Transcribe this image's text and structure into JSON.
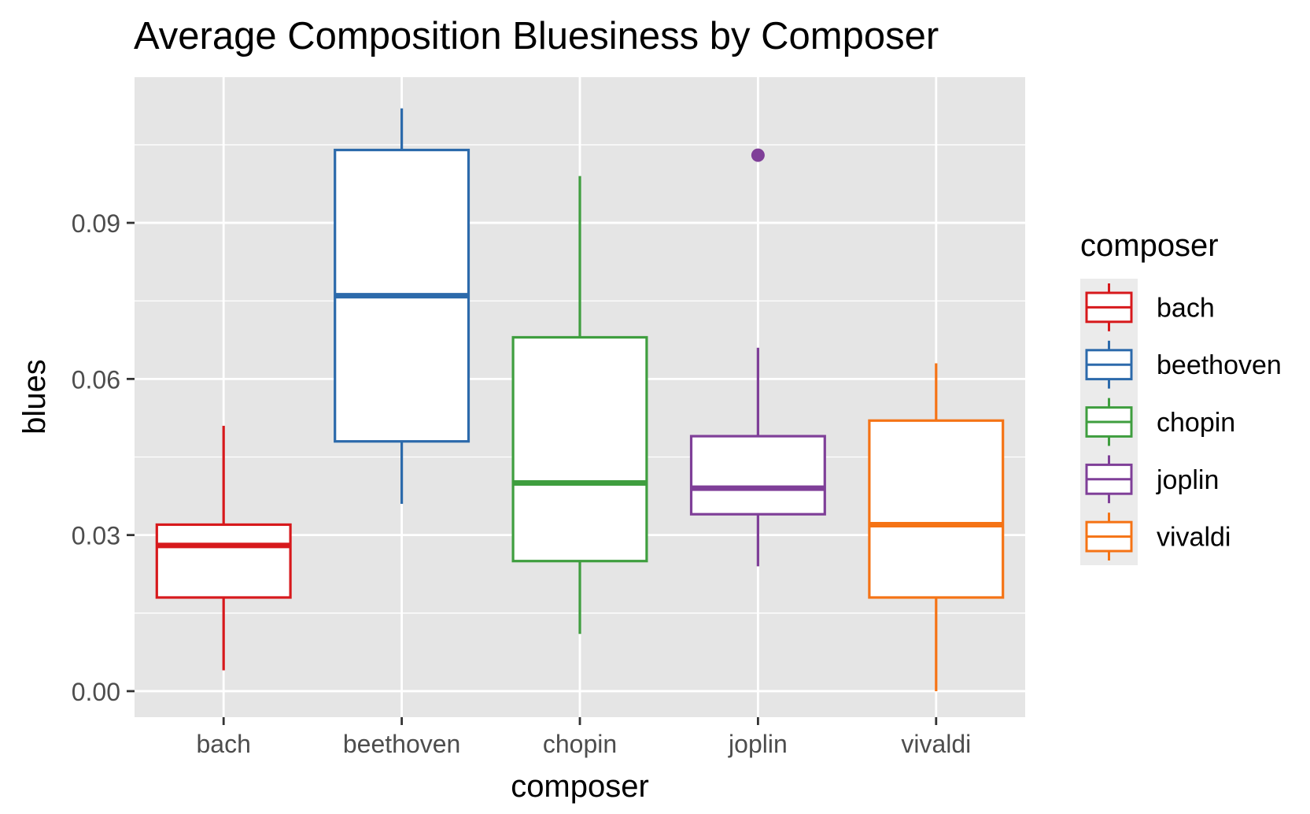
{
  "chart_data": {
    "type": "boxplot",
    "title": "Average Composition Bluesiness by Composer",
    "xlabel": "composer",
    "ylabel": "blues",
    "categories": [
      "bach",
      "beethoven",
      "chopin",
      "joplin",
      "vivaldi"
    ],
    "ylim": [
      -0.005,
      0.118
    ],
    "yticks": [
      0.0,
      0.03,
      0.06,
      0.09
    ],
    "ytick_labels": [
      "0.00",
      "0.03",
      "0.06",
      "0.09"
    ],
    "grid": true,
    "legend": {
      "title": "composer",
      "position": "right",
      "items": [
        "bach",
        "beethoven",
        "chopin",
        "joplin",
        "vivaldi"
      ]
    },
    "colors": {
      "bach": "#d7191c",
      "beethoven": "#2c6aab",
      "chopin": "#3f9e3f",
      "joplin": "#7f3f98",
      "vivaldi": "#f57315"
    },
    "panel_background": "#e5e5e5",
    "series": [
      {
        "name": "bach",
        "whisker_low": 0.004,
        "q1": 0.018,
        "median": 0.028,
        "q3": 0.032,
        "whisker_high": 0.051,
        "outliers": []
      },
      {
        "name": "beethoven",
        "whisker_low": 0.036,
        "q1": 0.048,
        "median": 0.076,
        "q3": 0.104,
        "whisker_high": 0.112,
        "outliers": []
      },
      {
        "name": "chopin",
        "whisker_low": 0.011,
        "q1": 0.025,
        "median": 0.04,
        "q3": 0.068,
        "whisker_high": 0.099,
        "outliers": []
      },
      {
        "name": "joplin",
        "whisker_low": 0.024,
        "q1": 0.034,
        "median": 0.039,
        "q3": 0.049,
        "whisker_high": 0.066,
        "outliers": [
          0.103
        ]
      },
      {
        "name": "vivaldi",
        "whisker_low": 0.0,
        "q1": 0.018,
        "median": 0.032,
        "q3": 0.052,
        "whisker_high": 0.063,
        "outliers": []
      }
    ]
  }
}
